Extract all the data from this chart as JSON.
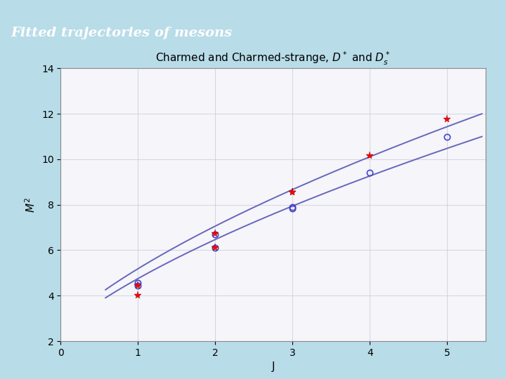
{
  "title_main": "Fitted trajectories of mesons",
  "title_main_bg": "#000060",
  "title_main_color": "#ffffff",
  "chart_title": "Charmed and Charmed-strange, $D^*$ and $D_s^*$",
  "xlabel": "J",
  "ylabel": "$M^2$",
  "xlim": [
    0,
    5.5
  ],
  "ylim": [
    2,
    14
  ],
  "xticks": [
    0,
    1,
    2,
    3,
    4,
    5
  ],
  "yticks": [
    2,
    4,
    6,
    8,
    10,
    12,
    14
  ],
  "curve_color": "#6666bb",
  "curve1_A": 3.62,
  "curve1_d": 0.55,
  "curve1_n": 0.62,
  "curve2_A": 3.95,
  "curve2_d": 0.55,
  "curve2_n": 0.62,
  "curve_start": 0.58,
  "curve_end": 5.45,
  "data_red_asterisk": [
    [
      1,
      4.02
    ],
    [
      2,
      6.12
    ],
    [
      3,
      8.55
    ],
    [
      4,
      10.15
    ],
    [
      5,
      11.75
    ]
  ],
  "data_red_asterisk2": [
    [
      1,
      4.44
    ],
    [
      2,
      6.72
    ],
    [
      3,
      8.55
    ]
  ],
  "data_blue_circle": [
    [
      1,
      4.44
    ],
    [
      2,
      6.69
    ],
    [
      3,
      7.9
    ],
    [
      5,
      10.97
    ]
  ],
  "data_blue_circle2": [
    [
      1,
      4.55
    ],
    [
      2,
      6.12
    ],
    [
      3,
      7.82
    ],
    [
      4,
      9.42
    ]
  ],
  "fig_bg": "#b8dce8",
  "chart_bg": "#f5f5fa",
  "grid_color": "#c8c8d8",
  "title_fontsize": 14,
  "chart_title_fontsize": 11,
  "axis_fontsize": 11,
  "tick_fontsize": 10
}
